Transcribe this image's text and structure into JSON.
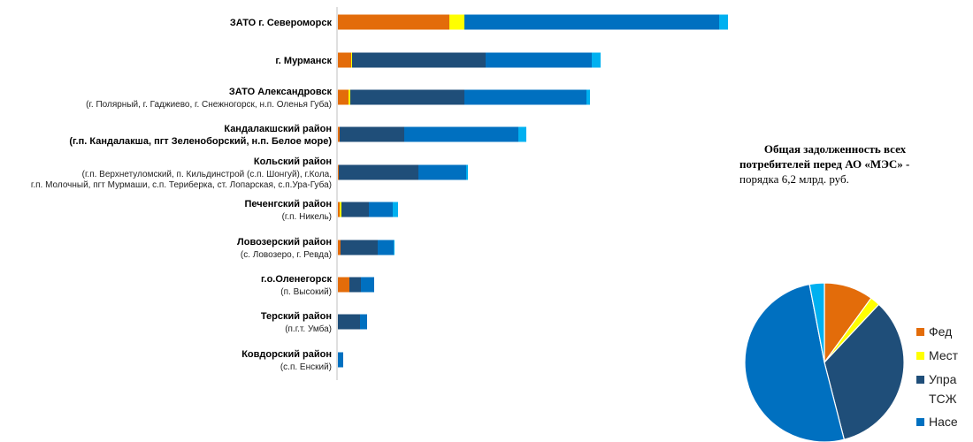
{
  "chart_data": [
    {
      "type": "bar",
      "orientation": "horizontal",
      "stacked": true,
      "categories": [
        {
          "name": "ЗАТО г. Североморск",
          "sub": []
        },
        {
          "name": "г. Мурманск",
          "sub": []
        },
        {
          "name": "ЗАТО Александровск",
          "sub": [
            "(г. Полярный, г. Гаджиево, г. Снежногорск, н.п. Оленья Губа)"
          ]
        },
        {
          "name": "Кандалакшский  район",
          "sub": [
            "(г.п. Кандалакша,  пгт Зеленоборский,  н.п. Белое море)"
          ],
          "sub_bold": true
        },
        {
          "name": "Кольский район",
          "sub": [
            "(г.п. Верхнетуломский, п. Кильдинстрой (с.п. Шонгуй), г.Кола,",
            "г.п. Молочный, пгт Мурмаши, с.п. Териберка, ст. Лопарская, с.п.Ура-Губа)"
          ]
        },
        {
          "name": "Печенгский  район",
          "sub": [
            "(г.п. Никель)"
          ]
        },
        {
          "name": "Ловозерский  район",
          "sub": [
            "(с. Ловозеро, г. Ревда)"
          ]
        },
        {
          "name": "г.о.Оленегорск",
          "sub": [
            "(п. Высокий)"
          ]
        },
        {
          "name": "Терский район",
          "sub": [
            "(п.г.т. Умба)"
          ]
        },
        {
          "name": "Ковдорский район",
          "sub": [
            "(с.п. Енский)"
          ]
        }
      ],
      "series": [
        {
          "color": "#e36c0a",
          "values": [
            126,
            15,
            12,
            2,
            1,
            2,
            3,
            13,
            0,
            0
          ]
        },
        {
          "color": "#ffff00",
          "values": [
            17,
            1,
            2,
            0,
            0,
            2,
            0,
            0,
            0,
            0
          ]
        },
        {
          "color": "#1f4e79",
          "values": [
            0,
            151,
            129,
            73,
            90,
            31,
            42,
            13,
            25,
            0
          ]
        },
        {
          "color": "#0070c0",
          "values": [
            288,
            120,
            138,
            129,
            54,
            27,
            18,
            15,
            8,
            6
          ]
        },
        {
          "color": "#00b0f0",
          "values": [
            10,
            10,
            4,
            9,
            2,
            6,
            1,
            0,
            0,
            0
          ]
        }
      ],
      "xlim": [
        0,
        450
      ],
      "grid": false
    },
    {
      "type": "pie",
      "start_angle_deg": 0,
      "direction": "clockwise",
      "slices": [
        {
          "label": "Фед",
          "color": "#e36c0a",
          "value": 10
        },
        {
          "label": "Мест",
          "color": "#ffff00",
          "value": 2
        },
        {
          "label": "Упра",
          "label_line2": "ТСЖ",
          "color": "#1f4e79",
          "value": 34
        },
        {
          "label": "Насе",
          "color": "#0070c0",
          "value": 51
        },
        {
          "label": "",
          "color": "#00b0f0",
          "value": 3
        }
      ],
      "legend_placement": "right"
    }
  ],
  "summary": {
    "line1": "Общая задолженность всех",
    "line2": "потребителей перед АО «МЭС» -",
    "line3": "порядка 6,2 млрд. руб."
  }
}
